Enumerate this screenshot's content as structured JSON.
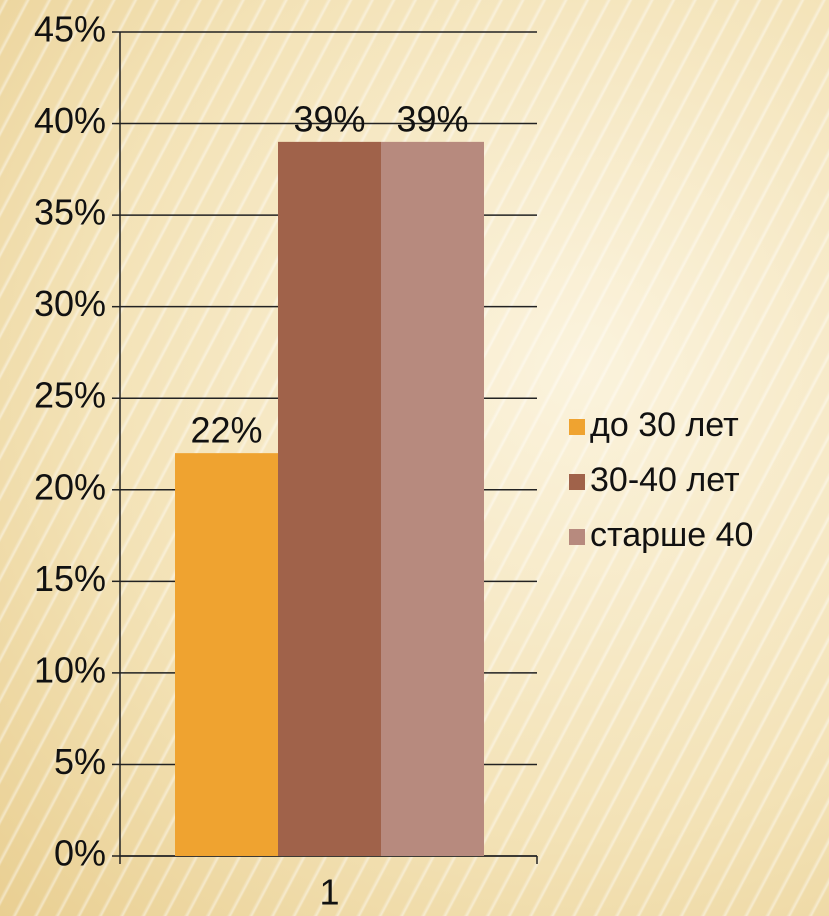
{
  "chart_data": {
    "type": "bar",
    "categories": [
      "1"
    ],
    "series": [
      {
        "name": "до 30 лет",
        "color": "#efa330",
        "values": [
          22
        ],
        "value_labels": [
          "22%"
        ]
      },
      {
        "name": "30-40 лет",
        "color": "#a0624a",
        "values": [
          39
        ],
        "value_labels": [
          "39%"
        ]
      },
      {
        "name": "старше 40",
        "color": "#b78a7e",
        "values": [
          39
        ],
        "value_labels": [
          "39%"
        ]
      }
    ],
    "ylim": [
      0,
      45
    ],
    "yticks": [
      {
        "value": 0,
        "label": "0%"
      },
      {
        "value": 5,
        "label": "5%"
      },
      {
        "value": 10,
        "label": "10%"
      },
      {
        "value": 15,
        "label": "15%"
      },
      {
        "value": 20,
        "label": "20%"
      },
      {
        "value": 25,
        "label": "25%"
      },
      {
        "value": 30,
        "label": "30%"
      },
      {
        "value": 35,
        "label": "35%"
      },
      {
        "value": 40,
        "label": "40%"
      },
      {
        "value": 45,
        "label": "45%"
      }
    ],
    "grid": true,
    "legend": "right"
  }
}
